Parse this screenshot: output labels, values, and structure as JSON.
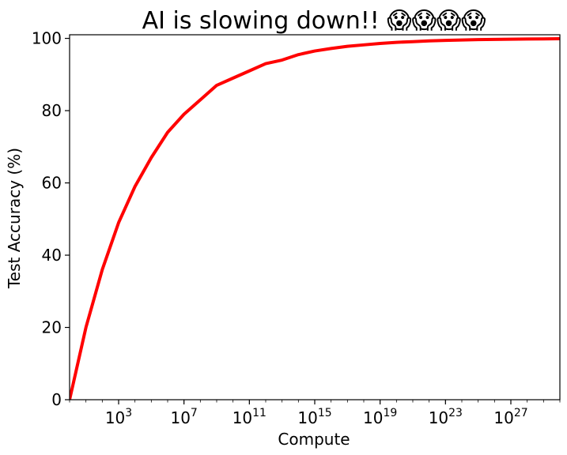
{
  "chart_data": {
    "type": "line",
    "title": "AI is slowing down!! 😱😱😱😱",
    "xlabel": "Compute",
    "ylabel": "Test Accuracy (%)",
    "x_scale": "log",
    "xlim": [
      1,
      1e+30
    ],
    "ylim": [
      0,
      101
    ],
    "x_ticks": [
      {
        "base": "10",
        "exp": "3",
        "value": 1000.0
      },
      {
        "base": "10",
        "exp": "7",
        "value": 10000000.0
      },
      {
        "base": "10",
        "exp": "11",
        "value": 100000000000.0
      },
      {
        "base": "10",
        "exp": "15",
        "value": 1000000000000000.0
      },
      {
        "base": "10",
        "exp": "19",
        "value": 1e+19
      },
      {
        "base": "10",
        "exp": "23",
        "value": 1e+23
      },
      {
        "base": "10",
        "exp": "27",
        "value": 1e+27
      }
    ],
    "y_ticks": [
      "0",
      "20",
      "40",
      "60",
      "80",
      "100"
    ],
    "grid": false,
    "legend": "none",
    "series": [
      {
        "color": "#ff0000",
        "x": [
          1,
          10,
          100,
          1000.0,
          10000.0,
          100000.0,
          1000000.0,
          10000000.0,
          100000000.0,
          1000000000.0,
          10000000000.0,
          100000000000.0,
          1000000000000.0,
          10000000000000.0,
          100000000000000.0,
          1000000000000000.0,
          1e+16,
          1e+17,
          1e+18,
          1e+19,
          1e+20,
          1e+21,
          1e+22,
          1e+23,
          1e+24,
          1e+25,
          1e+26,
          1e+27,
          1e+28,
          1e+29,
          1e+30
        ],
        "y": [
          0,
          20,
          36,
          49,
          59,
          67,
          74,
          79,
          83,
          87,
          89,
          91,
          93,
          94,
          95.5,
          96.5,
          97.2,
          97.8,
          98.2,
          98.6,
          98.9,
          99.1,
          99.3,
          99.45,
          99.55,
          99.65,
          99.72,
          99.78,
          99.82,
          99.86,
          99.9
        ]
      }
    ]
  }
}
